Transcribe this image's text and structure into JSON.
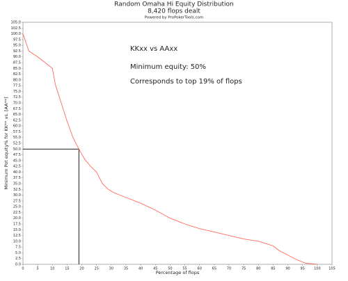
{
  "chart_data": {
    "type": "line",
    "title": "Random Omaha Hi Equity Distribution",
    "subtitle": "8,420 flops dealt",
    "credit": "Powered by ProPokerTools.com",
    "x_label": "Percentage of flops",
    "y_label": "Minimum Pot equity% for KK** vs. [AA**]",
    "annotations": [
      "KKxx vs AAxx",
      "Minimum equity: 50%",
      "Corresponds to top 19% of flops"
    ],
    "color": "#ff6a5a",
    "x": [
      0,
      2,
      5,
      8,
      10,
      11,
      13,
      15,
      17,
      19,
      21,
      23,
      25,
      27,
      29,
      31,
      35,
      40,
      45,
      50,
      55,
      60,
      65,
      70,
      75,
      80,
      85,
      87,
      90,
      93,
      96,
      100
    ],
    "values": [
      100,
      92.5,
      90,
      87,
      85,
      78,
      70,
      62,
      55,
      50,
      45.5,
      42.5,
      40,
      35,
      32.5,
      31,
      29,
      26.5,
      23.5,
      20,
      17.5,
      15.5,
      14,
      12.5,
      11,
      10,
      8,
      6,
      4,
      2,
      0.5,
      0
    ],
    "reference": {
      "x": 19,
      "y": 50
    },
    "xlim": [
      0,
      105
    ],
    "xticks": [
      0,
      5,
      10,
      15,
      20,
      25,
      30,
      35,
      40,
      45,
      50,
      55,
      60,
      65,
      70,
      75,
      80,
      85,
      90,
      95,
      100,
      105
    ],
    "ylim": [
      0,
      105
    ],
    "yticks": [
      {
        "value": 0,
        "label": "0.0"
      },
      {
        "value": 2.5,
        "label": "2.5"
      },
      {
        "value": 5,
        "label": "5.0"
      },
      {
        "value": 7.5,
        "label": "7.5"
      },
      {
        "value": 10,
        "label": "10.0"
      },
      {
        "value": 12.5,
        "label": "12.5"
      },
      {
        "value": 15,
        "label": "15.0"
      },
      {
        "value": 17.5,
        "label": "17.5"
      },
      {
        "value": 20,
        "label": "20.0"
      },
      {
        "value": 22.5,
        "label": "22.5"
      },
      {
        "value": 25,
        "label": "25.0"
      },
      {
        "value": 27.5,
        "label": "27.5"
      },
      {
        "value": 30,
        "label": "30.0"
      },
      {
        "value": 32.5,
        "label": "32.5"
      },
      {
        "value": 35,
        "label": "35.0"
      },
      {
        "value": 37.5,
        "label": "37.5"
      },
      {
        "value": 40,
        "label": "40.0"
      },
      {
        "value": 42.5,
        "label": "42.5"
      },
      {
        "value": 45,
        "label": "45.0"
      },
      {
        "value": 47.5,
        "label": "47.5"
      },
      {
        "value": 50,
        "label": "50.0"
      },
      {
        "value": 52.5,
        "label": "52.5"
      },
      {
        "value": 55,
        "label": "55.0"
      },
      {
        "value": 57.5,
        "label": "57.5"
      },
      {
        "value": 60,
        "label": "60.0"
      },
      {
        "value": 62.5,
        "label": "62.5"
      },
      {
        "value": 65,
        "label": "65.0"
      },
      {
        "value": 67.5,
        "label": "67.5"
      },
      {
        "value": 70,
        "label": "70.0"
      },
      {
        "value": 72.5,
        "label": "72.5"
      },
      {
        "value": 75,
        "label": "75.0"
      },
      {
        "value": 77.5,
        "label": "77.5"
      },
      {
        "value": 80,
        "label": "80.0"
      },
      {
        "value": 82.5,
        "label": "82.5"
      },
      {
        "value": 85,
        "label": "85.0"
      },
      {
        "value": 87.5,
        "label": "87.5"
      },
      {
        "value": 90,
        "label": "90.0"
      },
      {
        "value": 92.5,
        "label": "92.5"
      },
      {
        "value": 95,
        "label": "95.0"
      },
      {
        "value": 97.5,
        "label": "97.5"
      },
      {
        "value": 100,
        "label": "100.0"
      },
      {
        "value": 102.5,
        "label": "102.5"
      },
      {
        "value": 105,
        "label": "105.0"
      }
    ],
    "grid": false
  }
}
